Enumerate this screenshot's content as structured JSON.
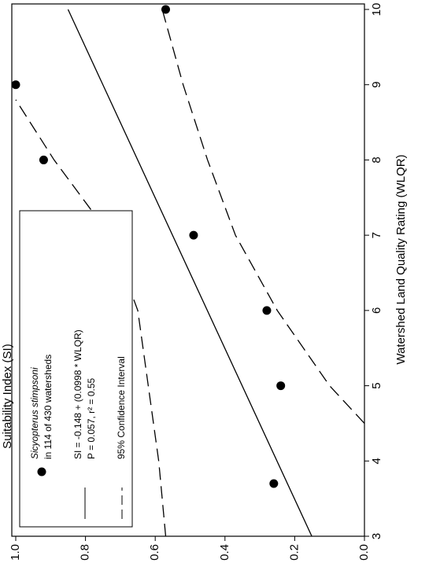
{
  "chart_data": {
    "type": "scatter",
    "xlabel": "Watershed Land Quality Rating (WLQR)",
    "ylabel": "Suitability Index (SI)",
    "xlim": [
      3,
      10
    ],
    "xticks": [
      3,
      4,
      5,
      6,
      7,
      8,
      9,
      10
    ],
    "ylim": [
      0,
      1
    ],
    "yticks": [
      {
        "value": 0,
        "label": "0.0"
      },
      {
        "value": 0.2,
        "label": "0.2"
      },
      {
        "value": 0.4,
        "label": "0.4"
      },
      {
        "value": 0.6,
        "label": "0.6"
      },
      {
        "value": 0.8,
        "label": "0.8"
      },
      {
        "value": 1,
        "label": "1.0"
      }
    ],
    "rotation": -90,
    "series": [
      {
        "name": "Sicyopterus stimpsoni",
        "note": "in 114 of 430 watersheds",
        "kind": "points",
        "color": "#000",
        "x": [
          3.7,
          5,
          6,
          7,
          8,
          9,
          10
        ],
        "values": [
          0.26,
          0.24,
          0.28,
          0.49,
          0.92,
          1.0,
          0.57
        ]
      },
      {
        "name": "SI = -0.148 + (0.0998 * WLQR)",
        "note": "P = 0.057, r² = 0.55",
        "kind": "solid",
        "color": "#000",
        "x": [
          3,
          10
        ],
        "values": [
          0.151,
          0.85
        ]
      },
      {
        "name": "95% Confidence Interval",
        "kind": "dashed",
        "color": "#000",
        "x": [
          3,
          4,
          5,
          6,
          7,
          8,
          8.8
        ],
        "values": [
          0.57,
          0.59,
          0.62,
          0.65,
          0.73,
          0.89,
          1.0
        ]
      },
      {
        "kind": "dashed",
        "color": "#000",
        "x": [
          4.5,
          5,
          6,
          7,
          8,
          9,
          10
        ],
        "values": [
          0,
          0.1,
          0.25,
          0.37,
          0.45,
          0.52,
          0.58
        ]
      }
    ]
  }
}
